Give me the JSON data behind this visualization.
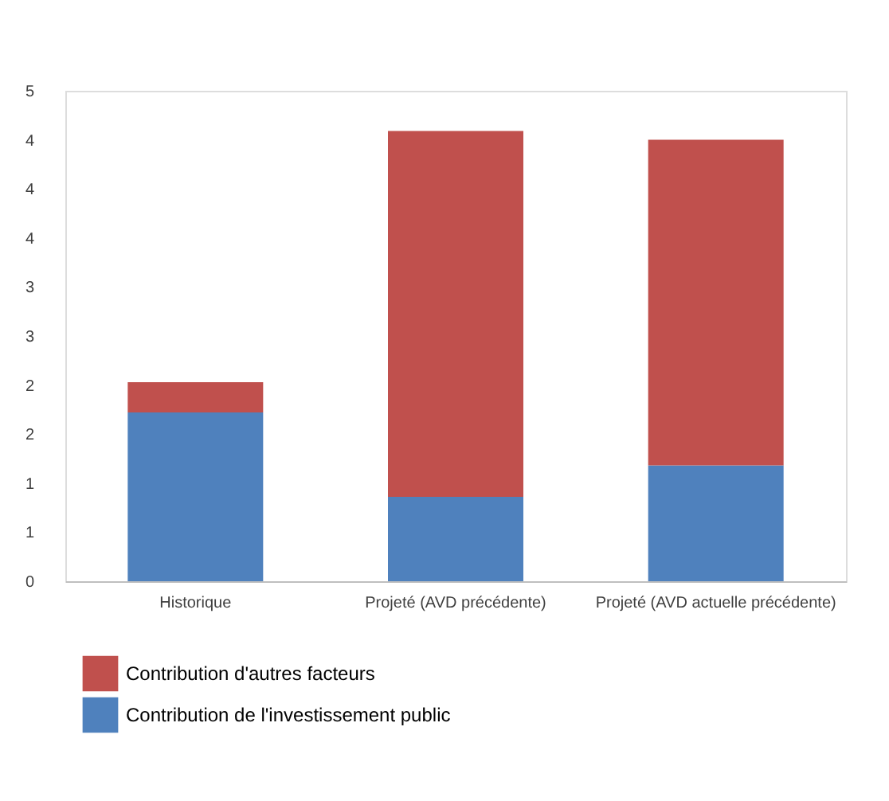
{
  "chart_data": {
    "type": "bar",
    "stacked": true,
    "categories": [
      "Historique",
      "Projeté (AVD précédente)",
      "Projeté (AVD actuelle précédente)"
    ],
    "series": [
      {
        "name": "Contribution de l'investissement public",
        "color": "#4f81bd",
        "values": [
          1.72,
          0.86,
          1.18
        ]
      },
      {
        "name": "Contribution d'autres facteurs",
        "color": "#c0504d",
        "values": [
          0.31,
          3.73,
          3.32
        ]
      }
    ],
    "ylim": [
      0,
      5
    ],
    "yticks": [
      0,
      {
        "value": 0.5,
        "label": "1"
      },
      1,
      {
        "value": 1.5,
        "label": "2"
      },
      2,
      {
        "value": 2.5,
        "label": "3"
      },
      3,
      {
        "value": 3.5,
        "label": "4"
      },
      4,
      {
        "value": 4.5,
        "label": "4"
      },
      5
    ],
    "grid": false,
    "legend": "bottom"
  }
}
